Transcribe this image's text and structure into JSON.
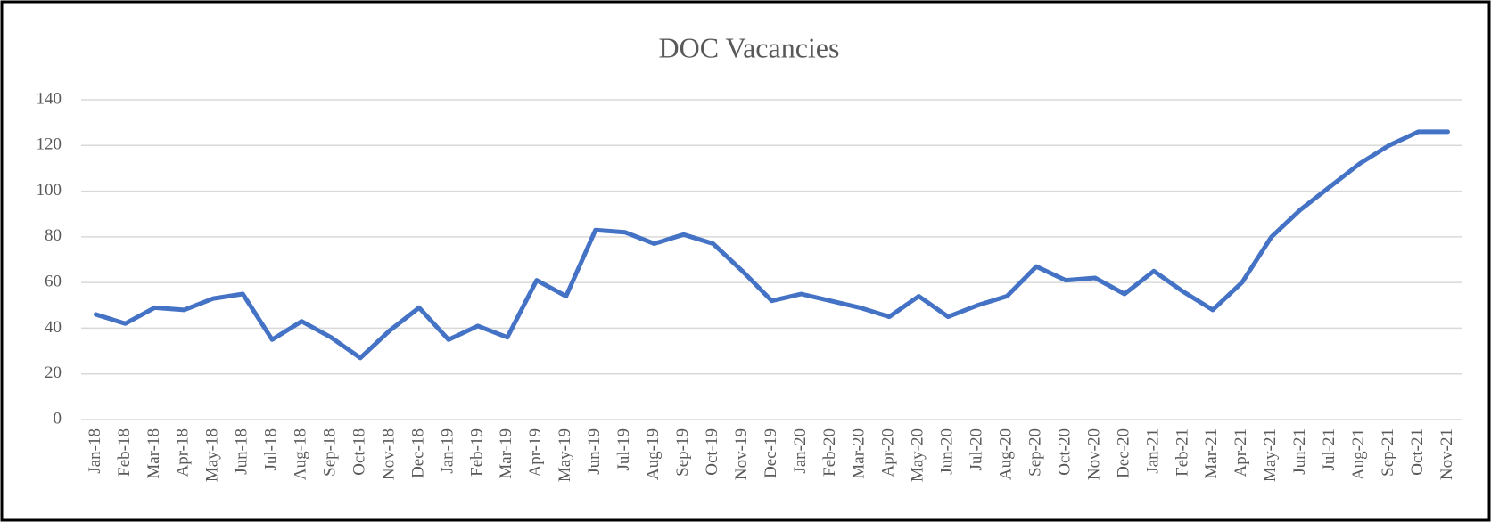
{
  "chart_data": {
    "type": "line",
    "title": "DOC Vacancies",
    "categories": [
      "Jan-18",
      "Feb-18",
      "Mar-18",
      "Apr-18",
      "May-18",
      "Jun-18",
      "Jul-18",
      "Aug-18",
      "Sep-18",
      "Oct-18",
      "Nov-18",
      "Dec-18",
      "Jan-19",
      "Feb-19",
      "Mar-19",
      "Apr-19",
      "May-19",
      "Jun-19",
      "Jul-19",
      "Aug-19",
      "Sep-19",
      "Oct-19",
      "Nov-19",
      "Dec-19",
      "Jan-20",
      "Feb-20",
      "Mar-20",
      "Apr-20",
      "May-20",
      "Jun-20",
      "Jul-20",
      "Aug-20",
      "Sep-20",
      "Oct-20",
      "Nov-20",
      "Dec-20",
      "Jan-21",
      "Feb-21",
      "Mar-21",
      "Apr-21",
      "May-21",
      "Jun-21",
      "Jul-21",
      "Aug-21",
      "Sep-21",
      "Oct-21",
      "Nov-21"
    ],
    "values": [
      46,
      42,
      49,
      48,
      53,
      55,
      35,
      43,
      36,
      27,
      39,
      49,
      35,
      41,
      36,
      61,
      54,
      83,
      82,
      77,
      81,
      77,
      65,
      52,
      55,
      52,
      49,
      45,
      54,
      45,
      50,
      54,
      67,
      61,
      62,
      55,
      65,
      56,
      48,
      60,
      80,
      92,
      102,
      112,
      120,
      126,
      126
    ],
    "color": "#4472c4",
    "ylim": [
      0,
      140
    ],
    "yticks": [
      0,
      20,
      40,
      60,
      80,
      100,
      120,
      140
    ],
    "grid": true
  }
}
